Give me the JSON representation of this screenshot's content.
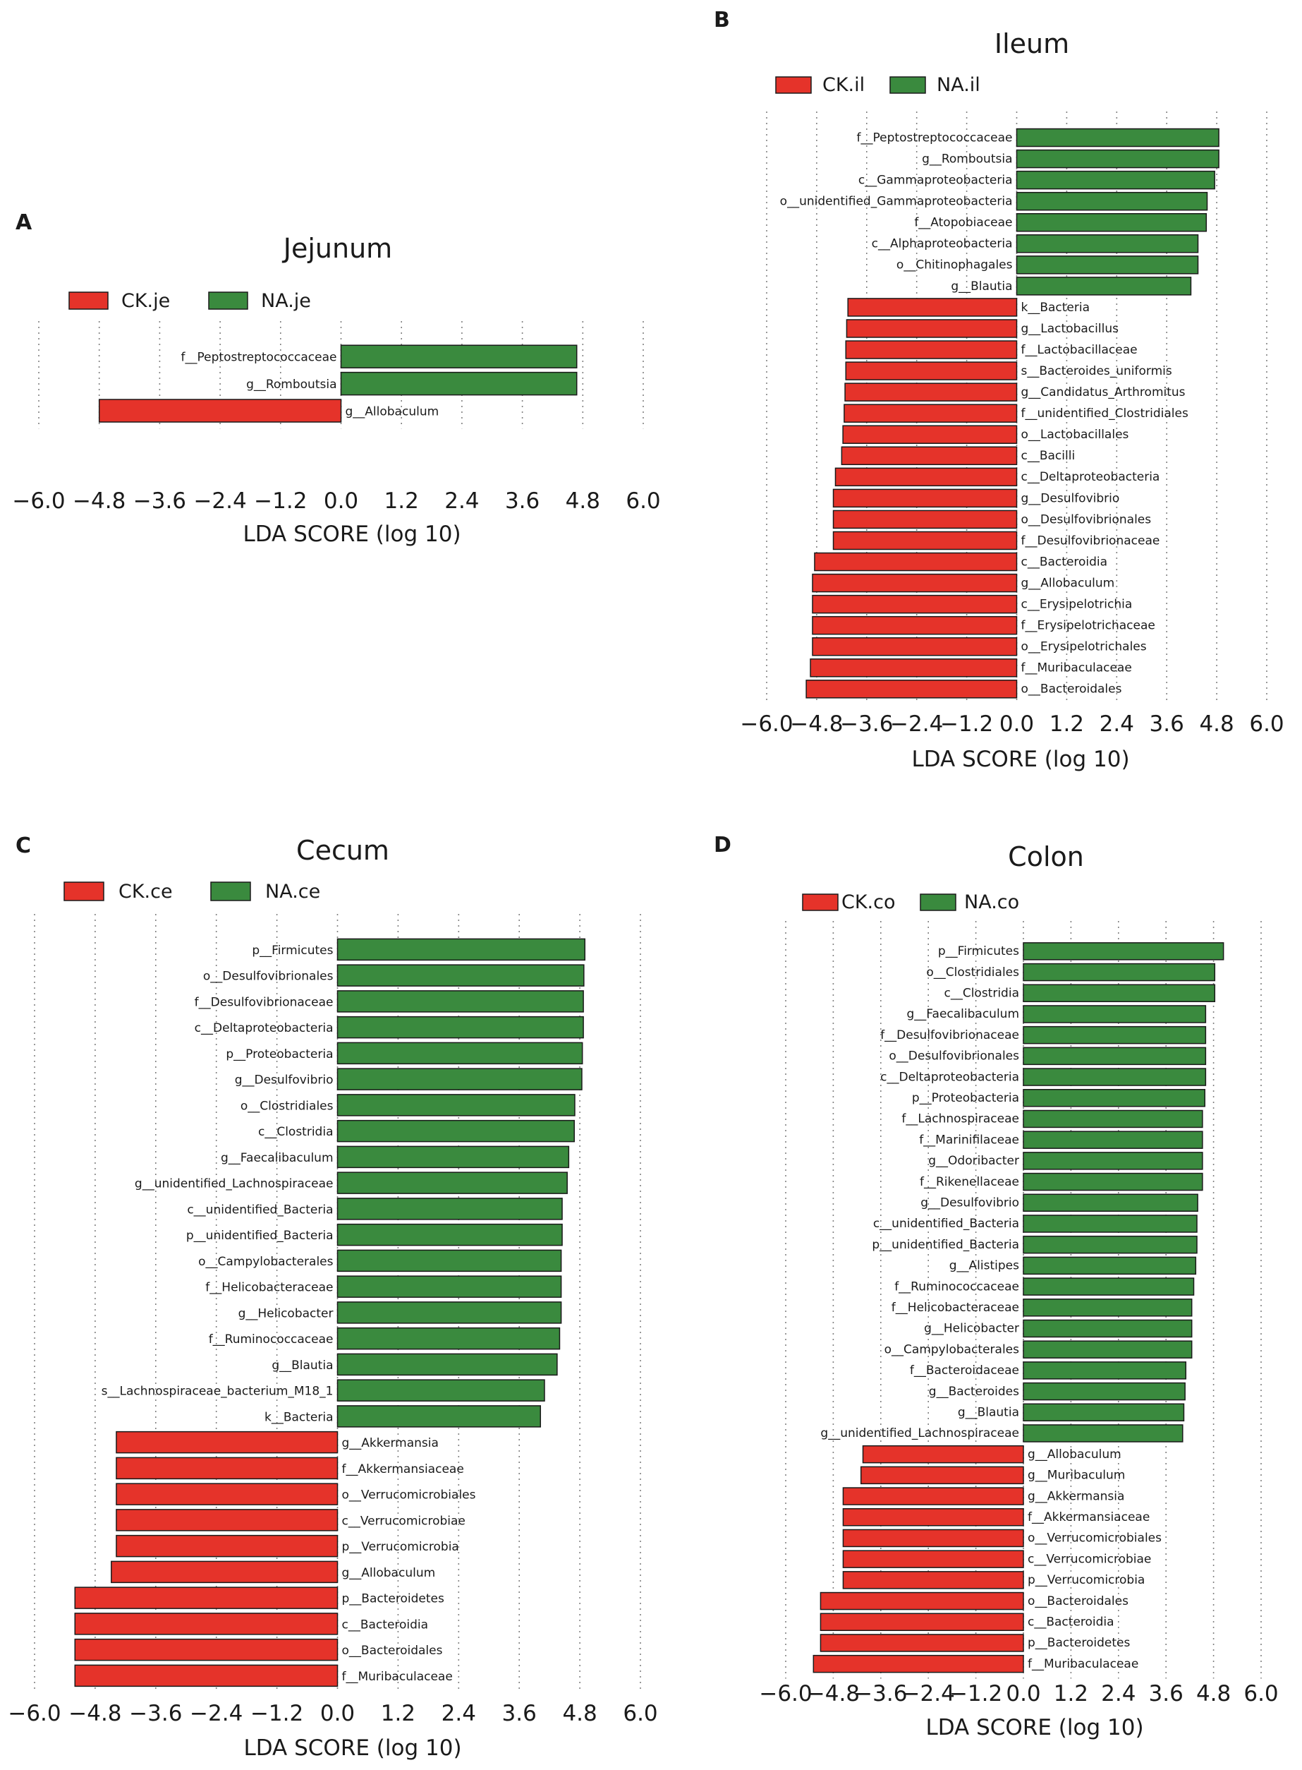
{
  "figure": {
    "description_letters": [
      "A",
      "B",
      "C",
      "D"
    ]
  },
  "colors": {
    "ck": "#e5332a",
    "na": "#3a8a3e"
  },
  "chart_data": [
    {
      "panel": "A",
      "title": "Jejunum",
      "type": "bar",
      "orientation": "horizontal",
      "xlabel": "LDA SCORE (log 10)",
      "xlim": [
        -6.0,
        6.0
      ],
      "xticks": [
        -6.0,
        -4.8,
        -3.6,
        -2.4,
        -1.2,
        0.0,
        1.2,
        2.4,
        3.6,
        4.8,
        6.0
      ],
      "xtick_labels": [
        "−6.0",
        "−4.8",
        "−3.6",
        "−2.4",
        "−1.2",
        "0.0",
        "1.2",
        "2.4",
        "3.6",
        "4.8",
        "6.0"
      ],
      "legend": [
        {
          "label": "CK.je",
          "group": "ck"
        },
        {
          "label": "NA.je",
          "group": "na"
        }
      ],
      "categories": [
        "f__Peptostreptococcaceae",
        "g__Romboutsia",
        "g__Allobaculum"
      ],
      "values": [
        4.68,
        4.68,
        -4.8
      ],
      "groups": [
        "na",
        "na",
        "ck"
      ]
    },
    {
      "panel": "B",
      "title": "Ileum",
      "type": "bar",
      "orientation": "horizontal",
      "xlabel": "LDA SCORE (log 10)",
      "xlim": [
        -6.0,
        6.0
      ],
      "xticks": [
        -6.0,
        -4.8,
        -3.6,
        -2.4,
        -1.2,
        0.0,
        1.2,
        2.4,
        3.6,
        4.8,
        6.0
      ],
      "xtick_labels": [
        "−6.0",
        "−4.8",
        "−3.6",
        "−2.4",
        "−1.2",
        "0.0",
        "1.2",
        "2.4",
        "3.6",
        "4.8",
        "6.0"
      ],
      "legend": [
        {
          "label": "CK.il",
          "group": "ck"
        },
        {
          "label": "NA.il",
          "group": "na"
        }
      ],
      "categories": [
        "f__Peptostreptococcaceae",
        "g__Romboutsia",
        "c__Gammaproteobacteria",
        "o__unidentified_Gammaproteobacteria",
        "f__Atopobiaceae",
        "c__Alphaproteobacteria",
        "o__Chitinophagales",
        "g__Blautia",
        "k__Bacteria",
        "g__Lactobacillus",
        "f__Lactobacillaceae",
        "s__Bacteroides_uniformis",
        "g__Candidatus_Arthromitus",
        "f__unidentified_Clostridiales",
        "o__Lactobacillales",
        "c__Bacilli",
        "c__Deltaproteobacteria",
        "g__Desulfovibrio",
        "o__Desulfovibrionales",
        "f__Desulfovibrionaceae",
        "c__Bacteroidia",
        "g__Allobaculum",
        "c__Erysipelotrichia",
        "f__Erysipelotrichaceae",
        "o__Erysipelotrichales",
        "f__Muribaculaceae",
        "o__Bacteroidales"
      ],
      "values": [
        4.85,
        4.85,
        4.75,
        4.57,
        4.55,
        4.35,
        4.35,
        4.18,
        -4.05,
        -4.08,
        -4.1,
        -4.1,
        -4.12,
        -4.14,
        -4.17,
        -4.2,
        -4.35,
        -4.4,
        -4.4,
        -4.4,
        -4.85,
        -4.9,
        -4.9,
        -4.9,
        -4.9,
        -4.95,
        -5.05
      ],
      "groups": [
        "na",
        "na",
        "na",
        "na",
        "na",
        "na",
        "na",
        "na",
        "ck",
        "ck",
        "ck",
        "ck",
        "ck",
        "ck",
        "ck",
        "ck",
        "ck",
        "ck",
        "ck",
        "ck",
        "ck",
        "ck",
        "ck",
        "ck",
        "ck",
        "ck",
        "ck"
      ]
    },
    {
      "panel": "C",
      "title": "Cecum",
      "type": "bar",
      "orientation": "horizontal",
      "xlabel": "LDA SCORE (log 10)",
      "xlim": [
        -6.0,
        6.0
      ],
      "xticks": [
        -6.0,
        -4.8,
        -3.6,
        -2.4,
        -1.2,
        0.0,
        1.2,
        2.4,
        3.6,
        4.8,
        6.0
      ],
      "xtick_labels": [
        "−6.0",
        "−4.8",
        "−3.6",
        "−2.4",
        "−1.2",
        "0.0",
        "1.2",
        "2.4",
        "3.6",
        "4.8",
        "6.0"
      ],
      "legend": [
        {
          "label": "CK.ce",
          "group": "ck"
        },
        {
          "label": "NA.ce",
          "group": "na"
        }
      ],
      "categories": [
        "p__Firmicutes",
        "o__Desulfovibrionales",
        "f__Desulfovibrionaceae",
        "c__Deltaproteobacteria",
        "p__Proteobacteria",
        "g__Desulfovibrio",
        "o__Clostridiales",
        "c__Clostridia",
        "g__Faecalibaculum",
        "g__unidentified_Lachnospiraceae",
        "c__unidentified_Bacteria",
        "p__unidentified_Bacteria",
        "o__Campylobacterales",
        "f__Helicobacteraceae",
        "g__Helicobacter",
        "f__Ruminococcaceae",
        "g__Blautia",
        "s__Lachnospiraceae_bacterium_M18_1",
        "k__Bacteria",
        "g__Akkermansia",
        "f__Akkermansiaceae",
        "o__Verrucomicrobiales",
        "c__Verrucomicrobiae",
        "p__Verrucomicrobia",
        "g__Allobaculum",
        "p__Bacteroidetes",
        "c__Bacteroidia",
        "o__Bacteroidales",
        "f__Muribaculaceae"
      ],
      "values": [
        4.9,
        4.88,
        4.87,
        4.87,
        4.85,
        4.84,
        4.7,
        4.69,
        4.58,
        4.55,
        4.45,
        4.45,
        4.43,
        4.43,
        4.43,
        4.4,
        4.35,
        4.1,
        4.02,
        -4.38,
        -4.38,
        -4.38,
        -4.38,
        -4.38,
        -4.48,
        -5.2,
        -5.2,
        -5.2,
        -5.2
      ],
      "groups": [
        "na",
        "na",
        "na",
        "na",
        "na",
        "na",
        "na",
        "na",
        "na",
        "na",
        "na",
        "na",
        "na",
        "na",
        "na",
        "na",
        "na",
        "na",
        "na",
        "ck",
        "ck",
        "ck",
        "ck",
        "ck",
        "ck",
        "ck",
        "ck",
        "ck",
        "ck"
      ]
    },
    {
      "panel": "D",
      "title": "Colon",
      "type": "bar",
      "orientation": "horizontal",
      "xlabel": "LDA SCORE (log 10)",
      "xlim": [
        -6.0,
        6.0
      ],
      "xticks": [
        -6.0,
        -4.8,
        -3.6,
        -2.4,
        -1.2,
        0.0,
        1.2,
        2.4,
        3.6,
        4.8,
        6.0
      ],
      "xtick_labels": [
        "−6.0",
        "−4.8",
        "−3.6",
        "−2.4",
        "−1.2",
        "0.0",
        "1.2",
        "2.4",
        "3.6",
        "4.8",
        "6.0"
      ],
      "legend": [
        {
          "label": "CK.co",
          "group": "ck"
        },
        {
          "label": "NA.co",
          "group": "na"
        }
      ],
      "categories": [
        "p__Firmicutes",
        "o__Clostridiales",
        "c__Clostridia",
        "g__Faecalibaculum",
        "f__Desulfovibrionaceae",
        "o__Desulfovibrionales",
        "c__Deltaproteobacteria",
        "p__Proteobacteria",
        "f__Lachnospiraceae",
        "f__Marinifilaceae",
        "g__Odoribacter",
        "f__Rikenellaceae",
        "g__Desulfovibrio",
        "c__unidentified_Bacteria",
        "p__unidentified_Bacteria",
        "g__Alistipes",
        "f__Ruminococcaceae",
        "f__Helicobacteraceae",
        "g__Helicobacter",
        "o__Campylobacterales",
        "f__Bacteroidaceae",
        "g__Bacteroides",
        "g__Blautia",
        "g__unidentified_Lachnospiraceae",
        "g__Allobaculum",
        "g__Muribaculum",
        "g__Akkermansia",
        "f__Akkermansiaceae",
        "o__Verrucomicrobiales",
        "c__Verrucomicrobiae",
        "p__Verrucomicrobia",
        "o__Bacteroidales",
        "c__Bacteroidia",
        "p__Bacteroidetes",
        "f__Muribaculaceae"
      ],
      "values": [
        5.05,
        4.83,
        4.83,
        4.6,
        4.6,
        4.6,
        4.6,
        4.58,
        4.52,
        4.52,
        4.52,
        4.52,
        4.4,
        4.38,
        4.38,
        4.35,
        4.3,
        4.25,
        4.25,
        4.25,
        4.1,
        4.08,
        4.05,
        4.02,
        -4.05,
        -4.1,
        -4.55,
        -4.55,
        -4.55,
        -4.55,
        -4.55,
        -5.12,
        -5.12,
        -5.12,
        -5.3
      ],
      "groups": [
        "na",
        "na",
        "na",
        "na",
        "na",
        "na",
        "na",
        "na",
        "na",
        "na",
        "na",
        "na",
        "na",
        "na",
        "na",
        "na",
        "na",
        "na",
        "na",
        "na",
        "na",
        "na",
        "na",
        "na",
        "ck",
        "ck",
        "ck",
        "ck",
        "ck",
        "ck",
        "ck",
        "ck",
        "ck",
        "ck",
        "ck"
      ]
    }
  ]
}
